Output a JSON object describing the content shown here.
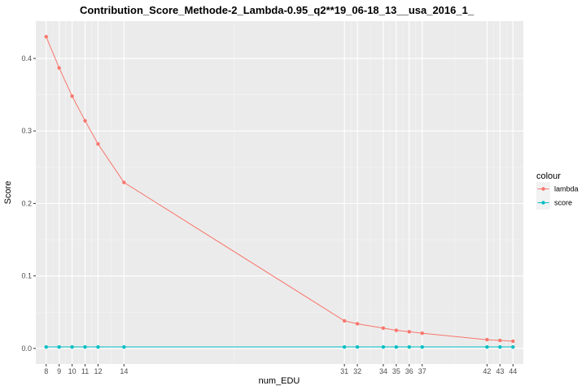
{
  "chart_data": {
    "type": "line",
    "title": "Contribution_Score_Methode-2_Lambda-0.95_q2**19_06-18_13__usa_2016_1_",
    "xlabel": "num_EDU",
    "ylabel": "Score",
    "x": [
      8,
      9,
      10,
      11,
      12,
      14,
      31,
      32,
      34,
      35,
      36,
      37,
      42,
      43,
      44
    ],
    "x_tick_labels": [
      "8",
      "9",
      "10",
      "11",
      "12",
      "14",
      "31",
      "32",
      "34",
      "35",
      "36",
      "37",
      "42",
      "43",
      "44"
    ],
    "xlim": [
      7.2,
      44.8
    ],
    "ylim": [
      -0.0215,
      0.4515
    ],
    "y_ticks": [
      0.0,
      0.1,
      0.2,
      0.3,
      0.4
    ],
    "y_tick_labels": [
      "0.0",
      "0.1",
      "0.2",
      "0.3",
      "0.4"
    ],
    "grid": true,
    "legend_title": "colour",
    "legend_position": "right",
    "series": [
      {
        "name": "lambda",
        "color": "#F8766D",
        "values": [
          0.43,
          0.387,
          0.348,
          0.314,
          0.282,
          0.229,
          0.038,
          0.034,
          0.028,
          0.025,
          0.023,
          0.021,
          0.012,
          0.011,
          0.01
        ]
      },
      {
        "name": "score",
        "color": "#00BFC4",
        "values": [
          0.002,
          0.002,
          0.002,
          0.002,
          0.002,
          0.002,
          0.002,
          0.002,
          0.002,
          0.002,
          0.002,
          0.002,
          0.002,
          0.002,
          0.002
        ]
      }
    ]
  }
}
